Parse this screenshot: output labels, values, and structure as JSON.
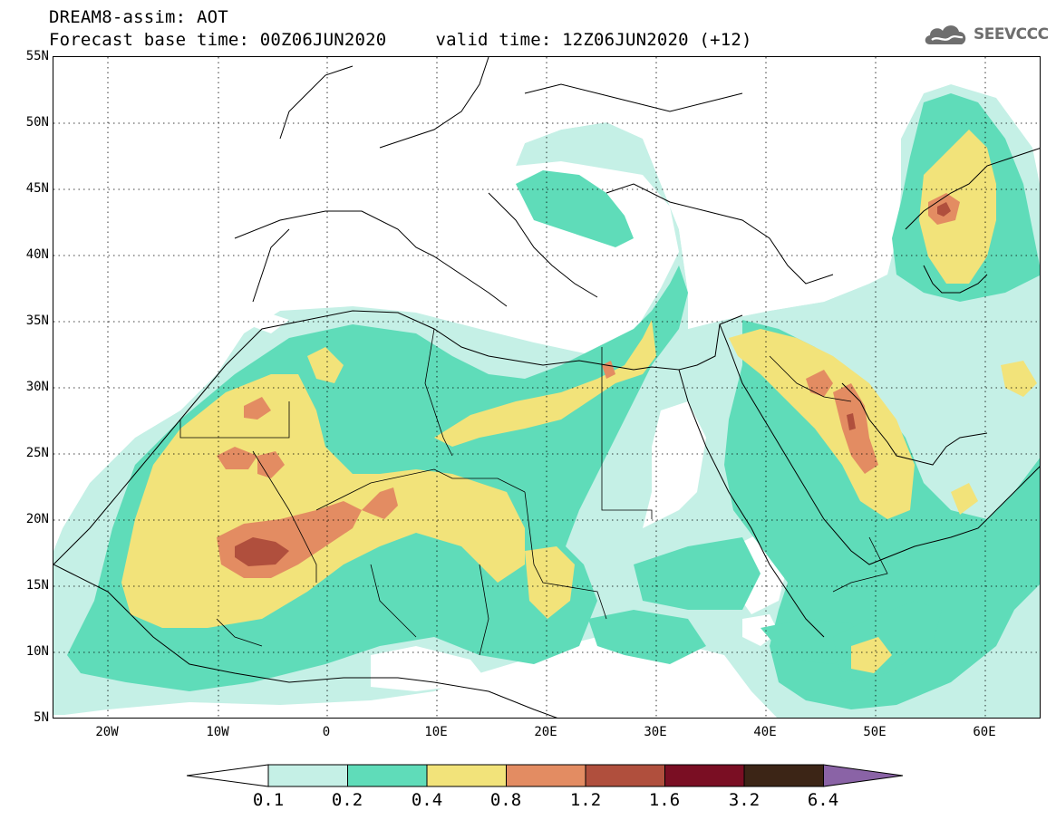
{
  "header": {
    "title": "DREAM8-assim: AOT",
    "base_time": "Forecast base time: 00Z06JUN2020",
    "valid_time": "valid time: 12Z06JUN2020 (+12)"
  },
  "logo": {
    "text": "SEEVCCC",
    "icon": "cloud-icon"
  },
  "map": {
    "region": "North Africa, Middle East and Europe",
    "lon_range": [
      -25,
      65
    ],
    "lat_range": [
      5,
      55
    ],
    "grid": "dotted",
    "lat_labels": [
      "55N",
      "50N",
      "45N",
      "40N",
      "35N",
      "30N",
      "25N",
      "20N",
      "15N",
      "10N",
      "5N"
    ],
    "lon_labels": [
      "20W",
      "10W",
      "0",
      "10E",
      "20E",
      "30E",
      "40E",
      "50E",
      "60E"
    ]
  },
  "legend": {
    "labels": [
      "0.1",
      "0.2",
      "0.4",
      "0.8",
      "1.2",
      "1.6",
      "3.2",
      "6.4"
    ],
    "colors": [
      "#c5f0e6",
      "#5fdcb9",
      "#f2e37a",
      "#e38c62",
      "#b04f3d",
      "#7a0e23",
      "#3c2516",
      "#8a63a6"
    ],
    "under_color": "#ffffff",
    "over_color": "#8a63a6"
  }
}
